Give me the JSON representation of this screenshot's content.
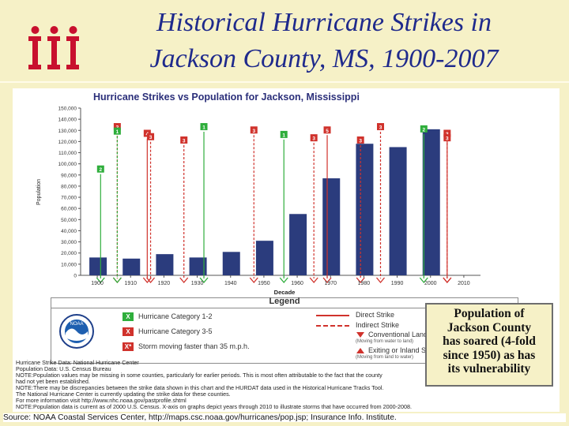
{
  "slide": {
    "title_line1": "Historical Hurricane Strikes in",
    "title_line2": "Jackson County, MS, 1900-2007",
    "source": "Source: NOAA Coastal Services Center, http://maps.csc.noaa.gov/hurricanes/pop.jsp; Insurance Info. Institute.",
    "callout": {
      "lines": [
        "Population of",
        "Jackson County",
        "has soared (4-fold",
        "since 1950) as has",
        "its vulnerability"
      ]
    }
  },
  "colors": {
    "slide_background": "#f6f1c7",
    "title": "#1f2a8c",
    "bar": "#2b3c7d",
    "category_1_2": "#2fae3c",
    "category_3_5": "#d0322c",
    "logo": "#c8102e"
  },
  "chart_data": {
    "type": "bar",
    "title": "Hurricane Strikes vs Population for Jackson, Mississippi",
    "xlabel": "Decade",
    "ylabel": "Population",
    "categories": [
      "1900",
      "1910",
      "1920",
      "1930",
      "1940",
      "1950",
      "1960",
      "1970",
      "1980",
      "1990",
      "2000",
      "2010"
    ],
    "values": [
      16000,
      15000,
      19000,
      16000,
      21000,
      31000,
      55000,
      87000,
      118000,
      115000,
      131000,
      null
    ],
    "ylim": [
      0,
      150000
    ],
    "y_ticks": [
      "0",
      "10,000",
      "20,000",
      "30,000",
      "40,000",
      "50,000",
      "60,000",
      "70,000",
      "80,000",
      "90,000",
      "100,000",
      "110,000",
      "120,000",
      "130,000",
      "140,000",
      "150,000"
    ],
    "grid": false,
    "strikes": [
      {
        "year": 1901,
        "category": "2",
        "strike": "direct",
        "top": 95000
      },
      {
        "year": 1906,
        "category": "3",
        "strike": "indirect",
        "top": 133000
      },
      {
        "year": 1906,
        "category": "1",
        "strike": "indirect",
        "top": 129000
      },
      {
        "year": 1915,
        "category": "4",
        "strike": "direct",
        "top": 127000
      },
      {
        "year": 1916,
        "category": "3",
        "strike": "indirect",
        "top": 124000
      },
      {
        "year": 1926,
        "category": "3",
        "strike": "indirect",
        "top": 121000
      },
      {
        "year": 1932,
        "category": "1",
        "strike": "direct",
        "top": 133000
      },
      {
        "year": 1947,
        "category": "3",
        "strike": "indirect",
        "top": 130000
      },
      {
        "year": 1956,
        "category": "1",
        "strike": "direct",
        "top": 126000
      },
      {
        "year": 1965,
        "category": "3",
        "strike": "indirect",
        "top": 123000
      },
      {
        "year": 1969,
        "category": "5",
        "strike": "direct",
        "top": 130000
      },
      {
        "year": 1979,
        "category": "3",
        "strike": "indirect",
        "top": 121000
      },
      {
        "year": 1985,
        "category": "3",
        "strike": "indirect",
        "top": 133000
      },
      {
        "year": 1998,
        "category": "2",
        "strike": "direct",
        "top": 131000
      },
      {
        "year": 2005,
        "category": "3",
        "strike": "direct",
        "top": 127000
      },
      {
        "year": 2005,
        "category": "3",
        "strike": "indirect",
        "top": 123000
      }
    ],
    "legend": {
      "title": "Legend",
      "items": {
        "cat12": "Hurricane Category 1-2",
        "cat35": "Hurricane Category 3-5",
        "fast": "Storm moving faster than 35 m.p.h.",
        "direct": "Direct Strike",
        "indirect": "Indirect Strike",
        "landfall": "Conventional Landfall Storm",
        "landfall_sub": "(Moving from water to land)",
        "exiting": "Exiting or Inland Storm",
        "exiting_sub": "(Moving from land to water)"
      }
    },
    "notes": [
      "Hurricane Strike Data: National Hurricane Center",
      "Population Data: U.S. Census Bureau",
      "NOTE:Population values may be missing in some counties, particularly for earlier periods. This is most often attributable to the fact that the county",
      "      had not yet been established.",
      "NOTE:There may be discrepancies between the strike data shown in this chart and the HURDAT data used in the Historical Hurricane Tracks Tool.",
      "      The National Hurricane Center is currently updating the strike data for these counties.",
      "      For more information visit http://www.nhc.noaa.gov/pastprofile.shtml",
      "NOTE:Population data is current as of 2000 U.S. Census. X-axis on graphs depict years through 2010 to illustrate storms that have occurred from 2000-2008."
    ]
  }
}
